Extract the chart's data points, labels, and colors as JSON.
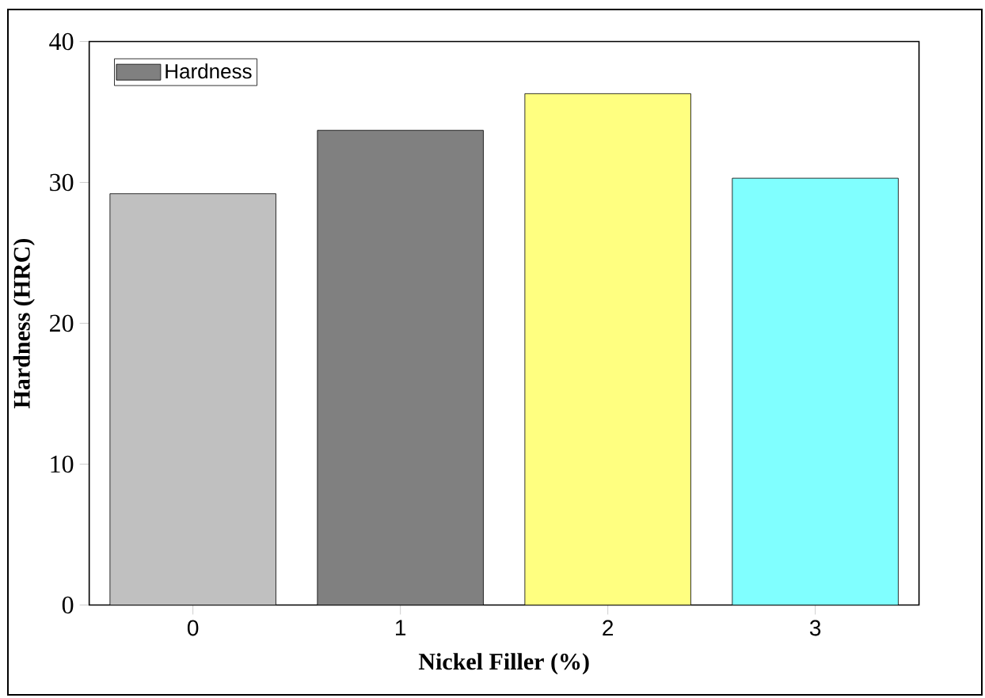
{
  "chart_data": {
    "type": "bar",
    "xlabel": "Nickel Filler (%)",
    "ylabel": "Hardness (HRC)",
    "categories": [
      "0",
      "1",
      "2",
      "3"
    ],
    "series": [
      {
        "name": "Hardness",
        "colors": [
          "#c0c0c0",
          "#808080",
          "#ffff80",
          "#80ffff"
        ],
        "values": [
          29.2,
          33.7,
          36.3,
          30.3
        ]
      }
    ],
    "ylim": [
      0,
      40
    ],
    "yticks": [
      0,
      10,
      20,
      30,
      40
    ],
    "legend": "top left",
    "grid": false
  }
}
